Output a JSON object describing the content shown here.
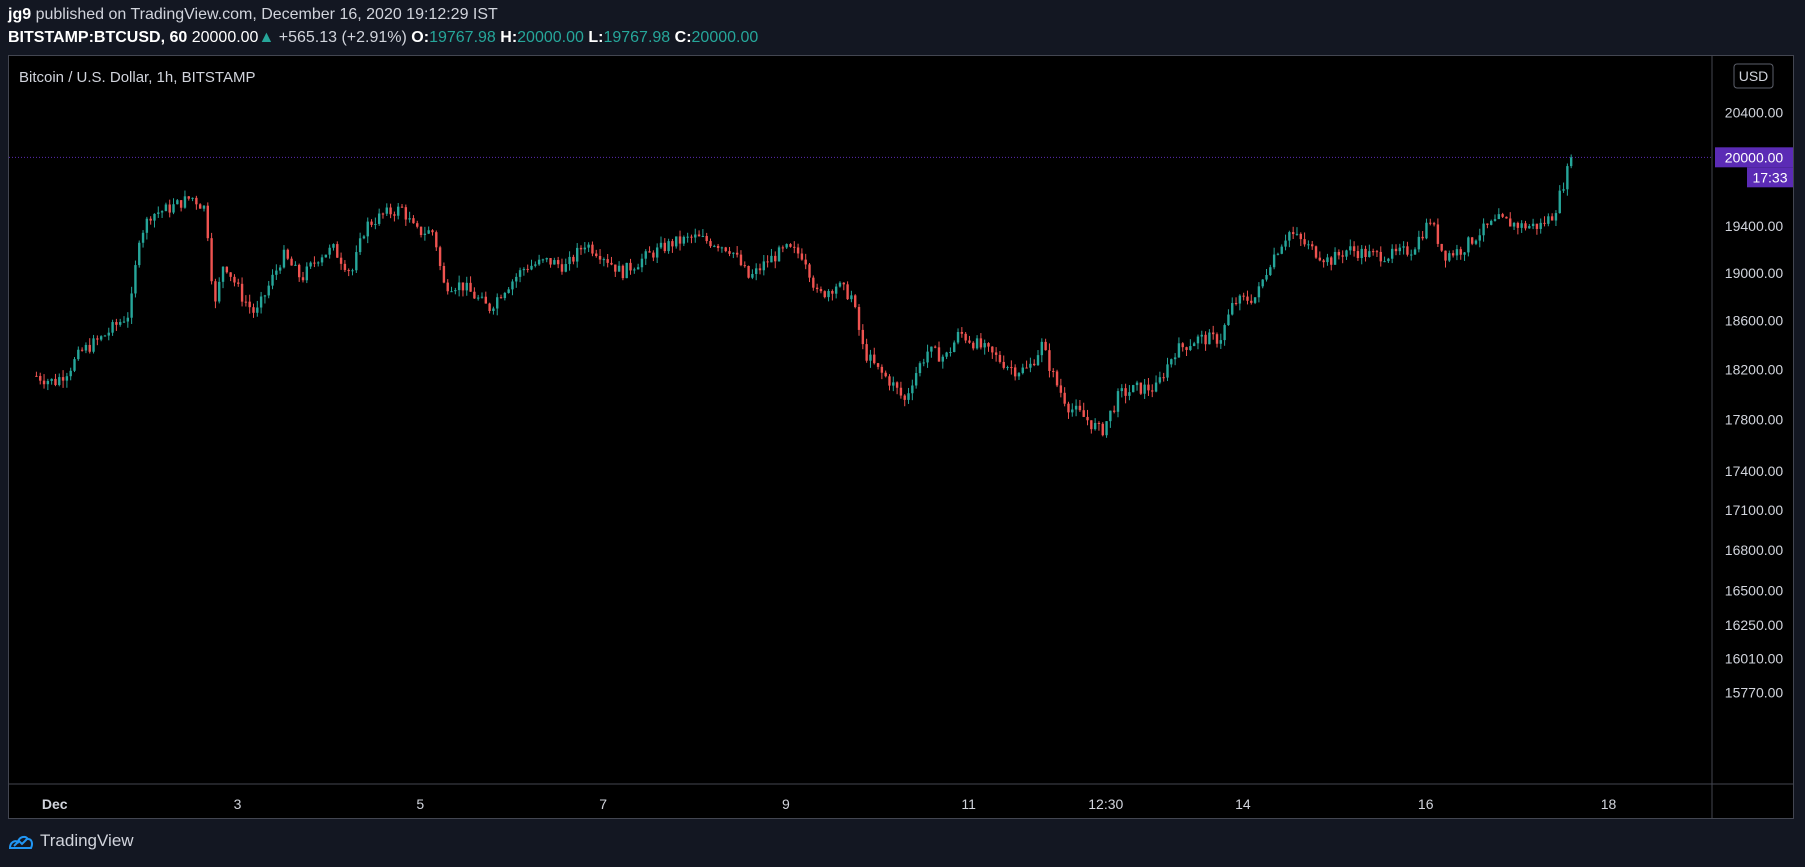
{
  "header": {
    "user": "jg9",
    "published_text": "published on TradingView.com, December 16, 2020 19:12:29 IST",
    "symbol": "BITSTAMP:BTCUSD, 60",
    "last_price": "20000.00",
    "change_arrow": "▲",
    "change": "+565.13 (+2.91%)",
    "open_label": "O:",
    "open": "19767.98",
    "high_label": "H:",
    "high": "20000.00",
    "low_label": "L:",
    "low": "19767.98",
    "close_label": "C:",
    "close": "20000.00"
  },
  "chart_title": "Bitcoin / U.S. Dollar, 1h, BITSTAMP",
  "currency_button": "USD",
  "last_price_label": "20000.00",
  "countdown_label": "17:33",
  "footer": {
    "brand": "TradingView"
  },
  "colors": {
    "up": "#26a69a",
    "down": "#ef5350",
    "accent": "#5b2bb5",
    "background": "#000000",
    "axis_text": "#d1d4dc",
    "last_price_line": "#5b2bb5"
  },
  "chart_data": {
    "type": "candlestick",
    "title": "Bitcoin / U.S. Dollar, 1h, BITSTAMP",
    "interval": "1h",
    "x_tick_labels": [
      "Dec",
      "3",
      "5",
      "7",
      "9",
      "11",
      "12:30",
      "14",
      "16",
      "18"
    ],
    "y_tick_labels": [
      "20400.00",
      "19400.00",
      "19000.00",
      "18600.00",
      "18200.00",
      "17800.00",
      "17400.00",
      "17100.00",
      "16800.00",
      "16500.00",
      "16250.00",
      "16010.00",
      "15770.00"
    ],
    "y_axis_scale": "log",
    "ylim": [
      15550,
      20800
    ],
    "last_price": 20000.0,
    "price_path": [
      {
        "day": 0.0,
        "price": 18150
      },
      {
        "day": 0.2,
        "price": 18100
      },
      {
        "day": 0.35,
        "price": 18200
      },
      {
        "day": 0.5,
        "price": 18350
      },
      {
        "day": 0.7,
        "price": 18450
      },
      {
        "day": 0.85,
        "price": 18550
      },
      {
        "day": 1.0,
        "price": 18650
      },
      {
        "day": 1.05,
        "price": 18800
      },
      {
        "day": 1.12,
        "price": 19300
      },
      {
        "day": 1.25,
        "price": 19500
      },
      {
        "day": 1.45,
        "price": 19550
      },
      {
        "day": 1.7,
        "price": 19650
      },
      {
        "day": 1.85,
        "price": 19550
      },
      {
        "day": 1.95,
        "price": 18700
      },
      {
        "day": 2.05,
        "price": 19100
      },
      {
        "day": 2.25,
        "price": 18800
      },
      {
        "day": 2.4,
        "price": 18650
      },
      {
        "day": 2.55,
        "price": 18900
      },
      {
        "day": 2.7,
        "price": 19150
      },
      {
        "day": 2.9,
        "price": 18950
      },
      {
        "day": 3.1,
        "price": 19150
      },
      {
        "day": 3.25,
        "price": 19200
      },
      {
        "day": 3.45,
        "price": 19000
      },
      {
        "day": 3.6,
        "price": 19400
      },
      {
        "day": 3.8,
        "price": 19500
      },
      {
        "day": 4.0,
        "price": 19550
      },
      {
        "day": 4.15,
        "price": 19350
      },
      {
        "day": 4.35,
        "price": 19350
      },
      {
        "day": 4.45,
        "price": 18900
      },
      {
        "day": 4.65,
        "price": 18900
      },
      {
        "day": 4.8,
        "price": 18800
      },
      {
        "day": 4.95,
        "price": 18700
      },
      {
        "day": 5.1,
        "price": 18850
      },
      {
        "day": 5.35,
        "price": 19050
      },
      {
        "day": 5.6,
        "price": 19100
      },
      {
        "day": 5.8,
        "price": 19050
      },
      {
        "day": 6.0,
        "price": 19250
      },
      {
        "day": 6.2,
        "price": 19150
      },
      {
        "day": 6.4,
        "price": 19000
      },
      {
        "day": 6.7,
        "price": 19150
      },
      {
        "day": 6.95,
        "price": 19250
      },
      {
        "day": 7.2,
        "price": 19300
      },
      {
        "day": 7.45,
        "price": 19250
      },
      {
        "day": 7.6,
        "price": 19200
      },
      {
        "day": 7.8,
        "price": 18950
      },
      {
        "day": 8.0,
        "price": 19100
      },
      {
        "day": 8.2,
        "price": 19200
      },
      {
        "day": 8.4,
        "price": 19150
      },
      {
        "day": 8.55,
        "price": 18800
      },
      {
        "day": 8.75,
        "price": 18900
      },
      {
        "day": 8.92,
        "price": 18800
      },
      {
        "day": 9.05,
        "price": 18350
      },
      {
        "day": 9.2,
        "price": 18200
      },
      {
        "day": 9.35,
        "price": 18100
      },
      {
        "day": 9.5,
        "price": 17950
      },
      {
        "day": 9.6,
        "price": 18150
      },
      {
        "day": 9.75,
        "price": 18350
      },
      {
        "day": 9.95,
        "price": 18300
      },
      {
        "day": 10.1,
        "price": 18500
      },
      {
        "day": 10.3,
        "price": 18400
      },
      {
        "day": 10.5,
        "price": 18300
      },
      {
        "day": 10.7,
        "price": 18200
      },
      {
        "day": 10.85,
        "price": 18200
      },
      {
        "day": 11.0,
        "price": 18400
      },
      {
        "day": 11.15,
        "price": 18100
      },
      {
        "day": 11.3,
        "price": 17900
      },
      {
        "day": 11.5,
        "price": 17800
      },
      {
        "day": 11.65,
        "price": 17700
      },
      {
        "day": 11.75,
        "price": 17850
      },
      {
        "day": 11.85,
        "price": 18000
      },
      {
        "day": 12.05,
        "price": 18050
      },
      {
        "day": 12.25,
        "price": 18050
      },
      {
        "day": 12.45,
        "price": 18350
      },
      {
        "day": 12.7,
        "price": 18450
      },
      {
        "day": 12.95,
        "price": 18450
      },
      {
        "day": 13.1,
        "price": 18750
      },
      {
        "day": 13.35,
        "price": 18800
      },
      {
        "day": 13.5,
        "price": 19100
      },
      {
        "day": 13.7,
        "price": 19350
      },
      {
        "day": 13.95,
        "price": 19200
      },
      {
        "day": 14.15,
        "price": 19100
      },
      {
        "day": 14.35,
        "price": 19200
      },
      {
        "day": 14.6,
        "price": 19150
      },
      {
        "day": 14.85,
        "price": 19150
      },
      {
        "day": 15.05,
        "price": 19200
      },
      {
        "day": 15.25,
        "price": 19450
      },
      {
        "day": 15.4,
        "price": 19150
      },
      {
        "day": 15.6,
        "price": 19200
      },
      {
        "day": 15.8,
        "price": 19350
      },
      {
        "day": 16.0,
        "price": 19450
      },
      {
        "day": 16.25,
        "price": 19400
      },
      {
        "day": 16.45,
        "price": 19400
      },
      {
        "day": 16.6,
        "price": 19500
      },
      {
        "day": 16.72,
        "price": 19800
      },
      {
        "day": 16.8,
        "price": 20000
      }
    ]
  }
}
